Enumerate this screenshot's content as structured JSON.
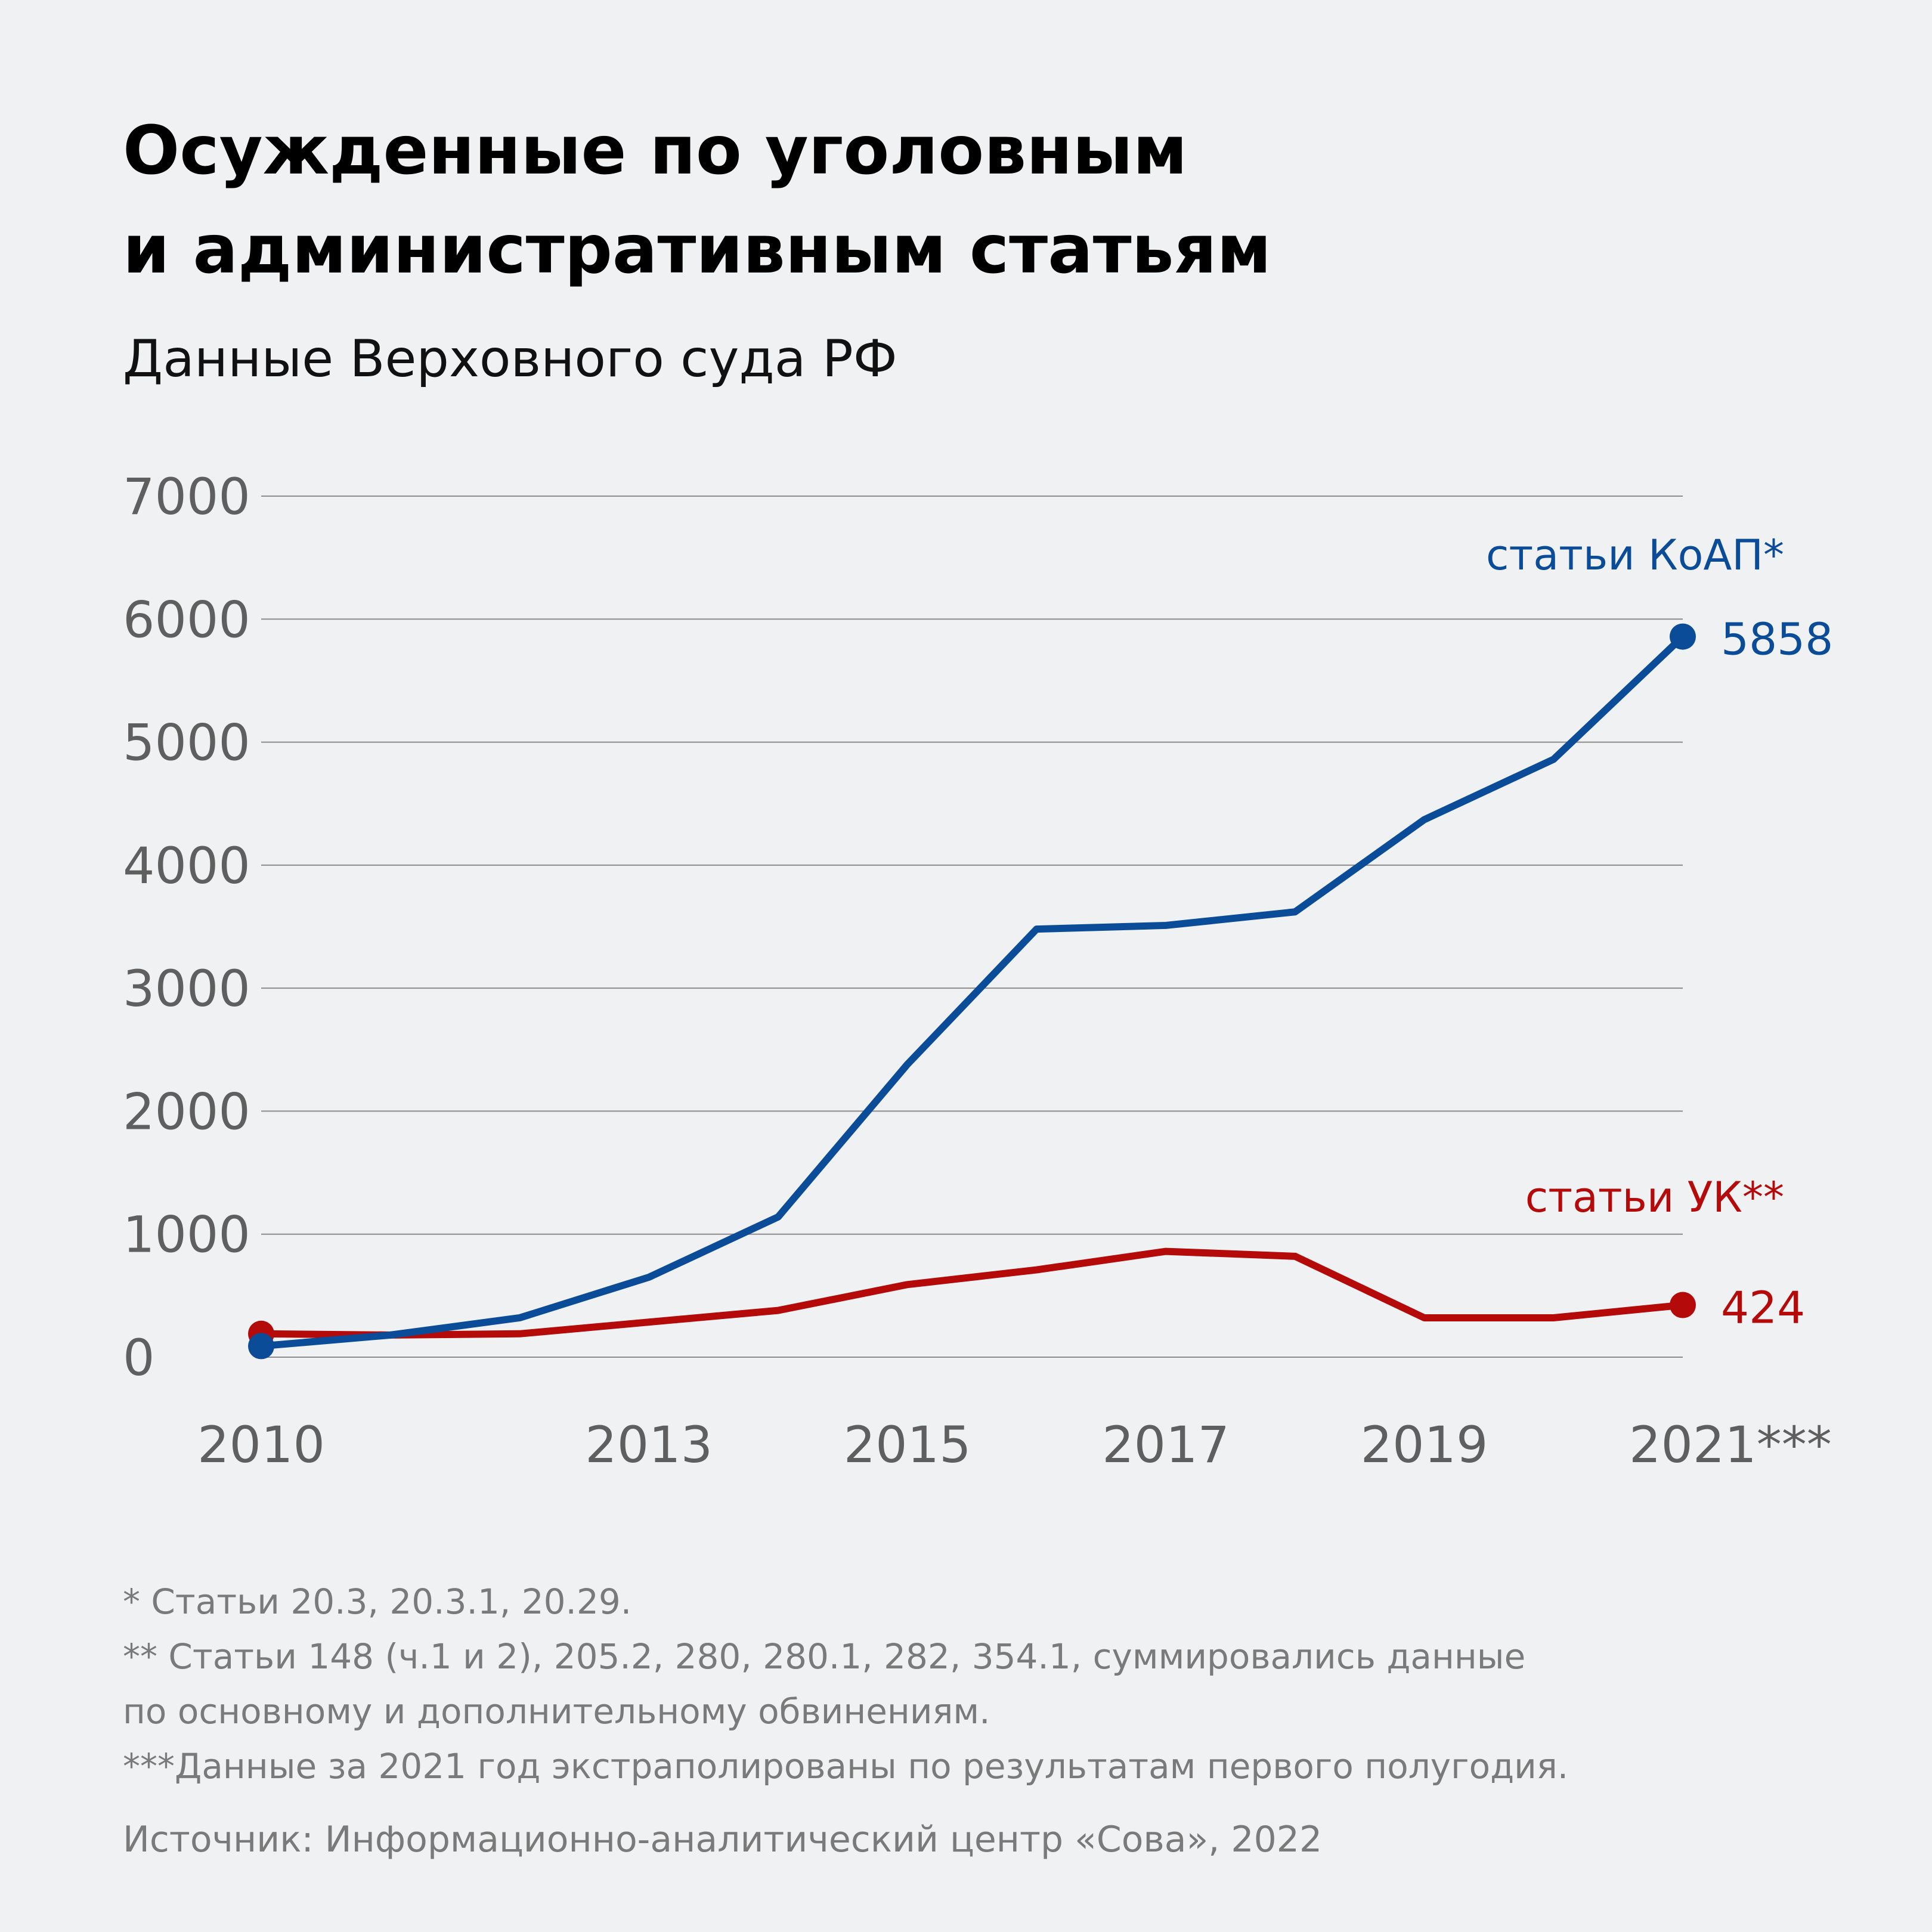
{
  "header": {
    "title_line1": "Осужденные по уголовным",
    "title_line2": "и административным статьям",
    "subtitle": "Данные Верховного суда РФ"
  },
  "colors": {
    "background": "#f0f1f3",
    "koap": "#0b4c99",
    "uk": "#b50a0a",
    "grid": "#8c8c8c",
    "axis_text": "#5f5f5f"
  },
  "chart_data": {
    "type": "line",
    "x": [
      2010,
      2011,
      2012,
      2013,
      2014,
      2015,
      2016,
      2017,
      2018,
      2019,
      2020,
      2021
    ],
    "x_tick_labels": [
      {
        "x": 2010,
        "label": "2010"
      },
      {
        "x": 2013,
        "label": "2013"
      },
      {
        "x": 2015,
        "label": "2015"
      },
      {
        "x": 2017,
        "label": "2017"
      },
      {
        "x": 2019,
        "label": "2019"
      },
      {
        "x": 2021,
        "label": "2021***"
      }
    ],
    "y_ticks": [
      0,
      1000,
      2000,
      3000,
      4000,
      5000,
      6000,
      7000
    ],
    "ylim": [
      0,
      7000
    ],
    "xlim": [
      2010,
      2021
    ],
    "grid": true,
    "series": [
      {
        "name": "статьи КоАП*",
        "color": "#0b4c99",
        "values": [
          90,
          180,
          320,
          650,
          1140,
          2380,
          3480,
          3510,
          3620,
          4370,
          4860,
          5858
        ],
        "end_label": "5858"
      },
      {
        "name": "статьи УК**",
        "color": "#b50a0a",
        "values": [
          190,
          180,
          190,
          285,
          380,
          590,
          710,
          860,
          820,
          320,
          320,
          424
        ],
        "end_label": "424"
      }
    ]
  },
  "footnotes": [
    "* Статьи 20.3, 20.3.1, 20.29.",
    "** Статьи 148 (ч.1 и 2), 205.2, 280, 280.1, 282, 354.1, суммировались данные",
    "по основному и дополнительному обвинениям.",
    "***Данные за 2021 год экстраполированы по результатам первого полугодия."
  ],
  "source": "Источник: Информационно-аналитический центр «Сова», 2022"
}
